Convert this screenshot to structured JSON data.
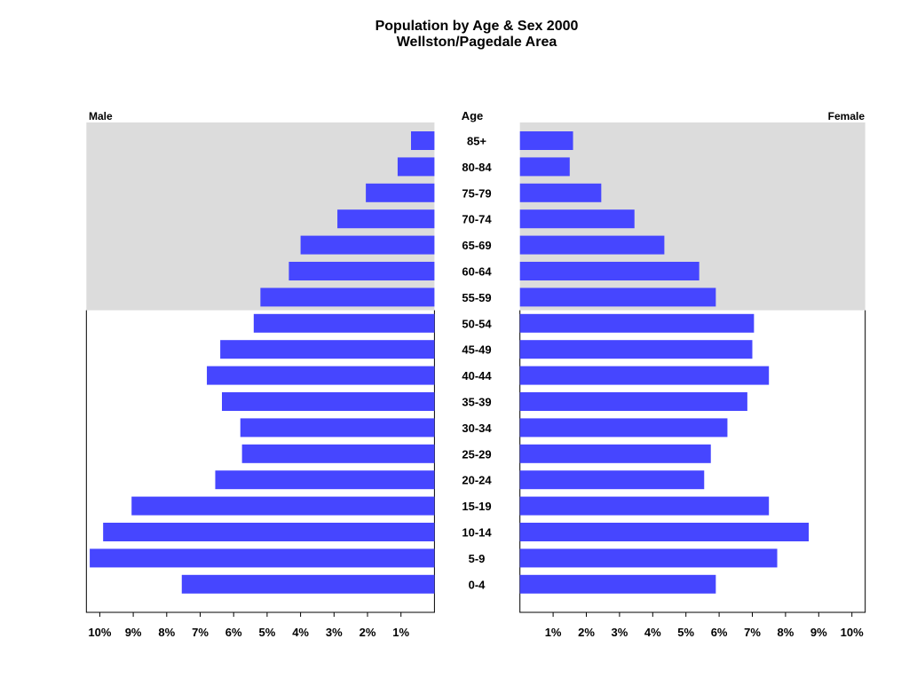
{
  "chart_data": {
    "type": "bar",
    "orientation": "horizontal",
    "subtype": "population-pyramid",
    "title": "Population by Age & Sex 2000",
    "subtitle": "Wellston/Pagedale Area",
    "category_label": "Age",
    "categories": [
      "85+",
      "80-84",
      "75-79",
      "70-74",
      "65-69",
      "60-64",
      "55-59",
      "50-54",
      "45-49",
      "40-44",
      "35-39",
      "30-34",
      "25-29",
      "20-24",
      "15-19",
      "10-14",
      "5-9",
      "0-4"
    ],
    "series": [
      {
        "name": "Male",
        "values": [
          0.7,
          1.1,
          2.05,
          2.9,
          4.0,
          4.35,
          5.2,
          5.4,
          6.4,
          6.8,
          6.35,
          5.8,
          5.75,
          6.55,
          9.05,
          9.9,
          10.3,
          7.55
        ]
      },
      {
        "name": "Female",
        "values": [
          1.6,
          1.5,
          2.45,
          3.45,
          4.35,
          5.4,
          5.9,
          7.05,
          7.0,
          7.5,
          6.85,
          6.25,
          5.75,
          5.55,
          7.5,
          8.7,
          7.75,
          5.9
        ]
      }
    ],
    "xlim": [
      0,
      10.4
    ],
    "male_ticks": [
      "10%",
      "9%",
      "8%",
      "7%",
      "6%",
      "5%",
      "4%",
      "3%",
      "2%",
      "1%"
    ],
    "female_ticks": [
      "1%",
      "2%",
      "3%",
      "4%",
      "5%",
      "6%",
      "7%",
      "8%",
      "9%",
      "10%"
    ],
    "highlight_band": [
      "55-59",
      "85+"
    ],
    "grid": false,
    "colors": {
      "bar": "#4646ff",
      "band": "#dcdcdc"
    }
  }
}
